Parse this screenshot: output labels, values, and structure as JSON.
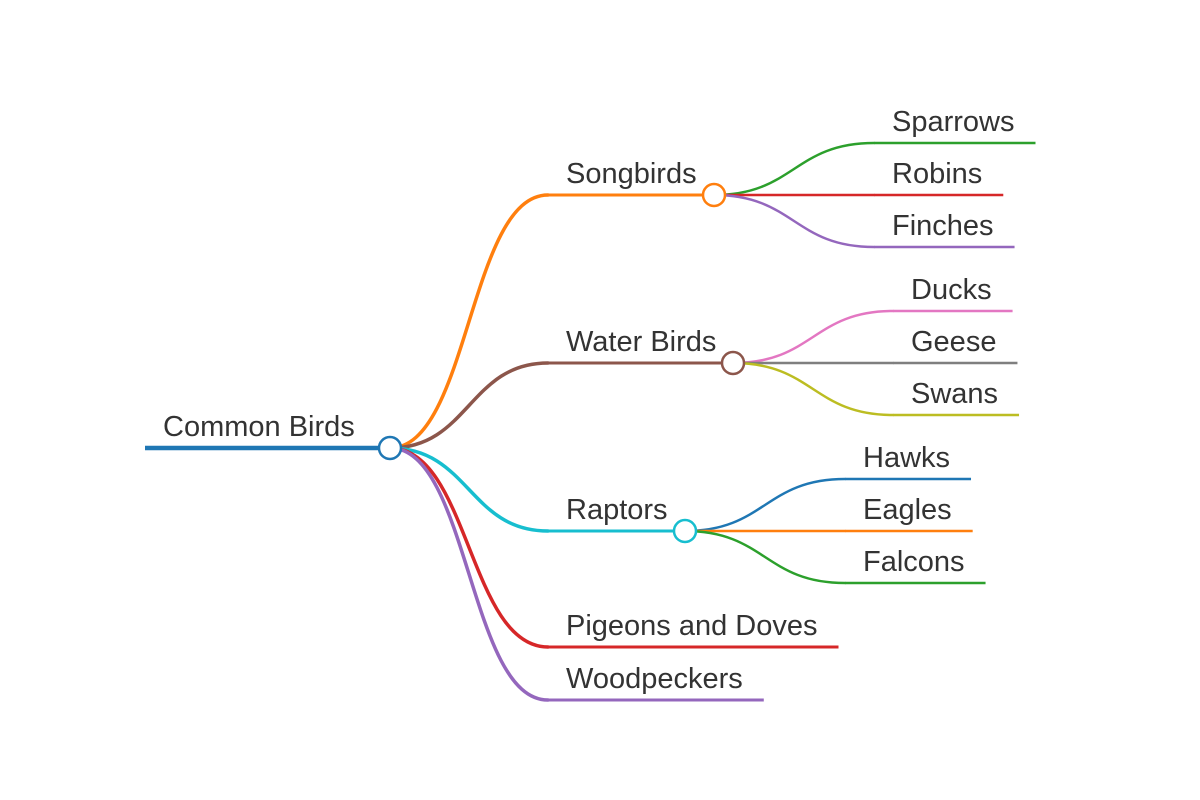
{
  "mindmap": {
    "root": {
      "label": "Common Birds",
      "color": "#1f77b4",
      "children": [
        {
          "label": "Songbirds",
          "color": "#ff7f0e",
          "children": [
            {
              "label": "Sparrows",
              "color": "#2ca02c"
            },
            {
              "label": "Robins",
              "color": "#d62728"
            },
            {
              "label": "Finches",
              "color": "#9467bd"
            }
          ]
        },
        {
          "label": "Water Birds",
          "color": "#8c564b",
          "children": [
            {
              "label": "Ducks",
              "color": "#e377c2"
            },
            {
              "label": "Geese",
              "color": "#7f7f7f"
            },
            {
              "label": "Swans",
              "color": "#bcbd22"
            }
          ]
        },
        {
          "label": "Raptors",
          "color": "#17becf",
          "children": [
            {
              "label": "Hawks",
              "color": "#1f77b4"
            },
            {
              "label": "Eagles",
              "color": "#ff7f0e"
            },
            {
              "label": "Falcons",
              "color": "#2ca02c"
            }
          ]
        },
        {
          "label": "Pigeons and Doves",
          "color": "#d62728",
          "children": []
        },
        {
          "label": "Woodpeckers",
          "color": "#9467bd",
          "children": []
        }
      ]
    }
  }
}
